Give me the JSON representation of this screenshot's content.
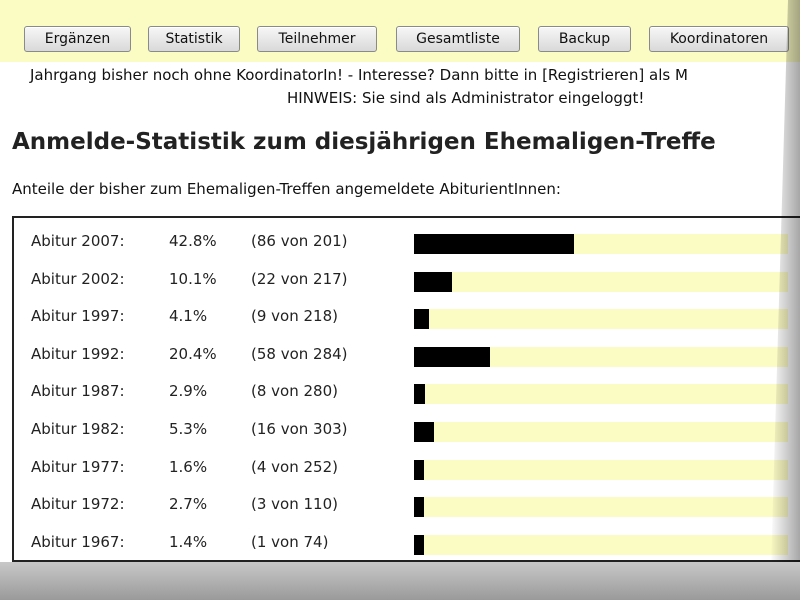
{
  "toolbar": {
    "buttons": [
      {
        "label": "Ergänzen"
      },
      {
        "label": "Statistik"
      },
      {
        "label": "Teilnehmer"
      },
      {
        "label": "Gesamtliste"
      },
      {
        "label": "Backup"
      },
      {
        "label": "Koordinatoren"
      }
    ]
  },
  "notice": "Jahrgang bisher noch ohne KoordinatorIn! - Interesse? Dann bitte in [Registrieren] als M",
  "admin_hint": "HINWEIS: Sie sind als Administrator eingeloggt!",
  "page_title": "Anmelde-Statistik zum diesjährigen Ehemaligen-Treffe",
  "subtitle": "Anteile der bisher zum Ehemaligen-Treffen angemeldete AbiturientInnen:",
  "colors": {
    "toolbar_bg": "#fbfbc4",
    "bar_track": "#fbfbc4",
    "bar_fill": "#000000"
  },
  "stats": [
    {
      "label": "Abitur 2007:",
      "percent": "42.8%",
      "count": "(86 von 201)",
      "fraction": 0.428
    },
    {
      "label": "Abitur 2002:",
      "percent": "10.1%",
      "count": "(22 von 217)",
      "fraction": 0.101
    },
    {
      "label": "Abitur 1997:",
      "percent": "4.1%",
      "count": "(9 von 218)",
      "fraction": 0.041
    },
    {
      "label": "Abitur 1992:",
      "percent": "20.4%",
      "count": "(58 von 284)",
      "fraction": 0.204
    },
    {
      "label": "Abitur 1987:",
      "percent": "2.9%",
      "count": "(8 von 280)",
      "fraction": 0.029
    },
    {
      "label": "Abitur 1982:",
      "percent": "5.3%",
      "count": "(16 von 303)",
      "fraction": 0.053
    },
    {
      "label": "Abitur 1977:",
      "percent": "1.6%",
      "count": "(4 von 252)",
      "fraction": 0.016
    },
    {
      "label": "Abitur 1972:",
      "percent": "2.7%",
      "count": "(3 von 110)",
      "fraction": 0.027
    },
    {
      "label": "Abitur 1967:",
      "percent": "1.4%",
      "count": "(1 von 74)",
      "fraction": 0.014
    }
  ]
}
